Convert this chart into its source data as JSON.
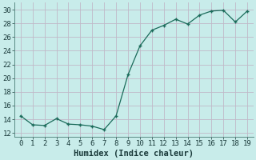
{
  "x": [
    0,
    1,
    2,
    3,
    4,
    5,
    6,
    7,
    8,
    9,
    10,
    11,
    12,
    13,
    14,
    15,
    16,
    17,
    18,
    19
  ],
  "y": [
    14.5,
    13.2,
    13.1,
    14.1,
    13.3,
    13.2,
    13.0,
    12.5,
    14.5,
    20.5,
    24.7,
    27.0,
    27.7,
    28.6,
    27.9,
    29.2,
    29.8,
    29.9,
    28.2,
    29.8
  ],
  "line_color": "#1a6b5a",
  "marker_color": "#1a6b5a",
  "bg_color": "#c8ecea",
  "grid_color_major": "#c0b8c8",
  "xlabel": "Humidex (Indice chaleur)",
  "ylim": [
    11.5,
    31.0
  ],
  "xlim": [
    -0.5,
    19.5
  ],
  "yticks": [
    12,
    14,
    16,
    18,
    20,
    22,
    24,
    26,
    28,
    30
  ],
  "xticks": [
    0,
    1,
    2,
    3,
    4,
    5,
    6,
    7,
    8,
    9,
    10,
    11,
    12,
    13,
    14,
    15,
    16,
    17,
    18,
    19
  ],
  "tick_fontsize": 6.5,
  "xlabel_fontsize": 7.5
}
